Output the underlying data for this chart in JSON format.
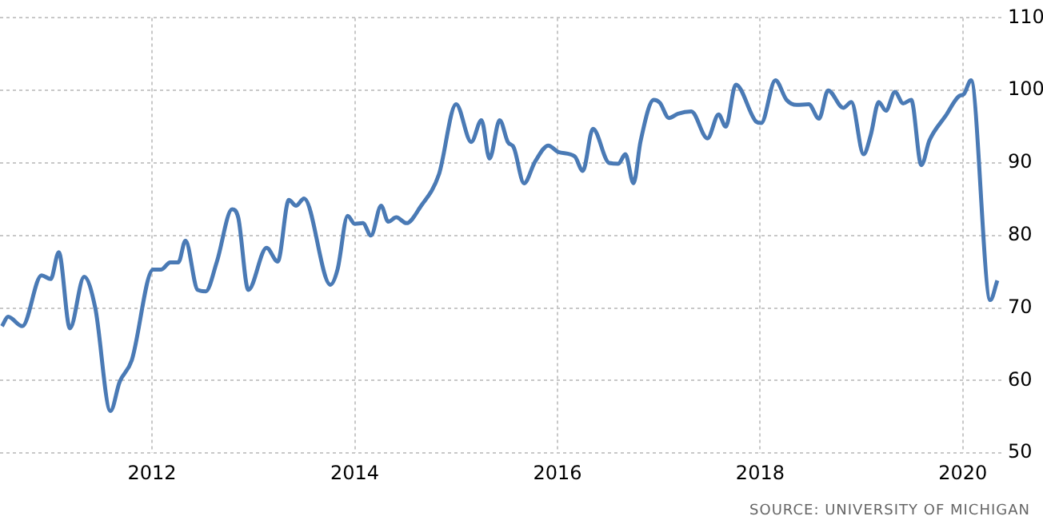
{
  "chart_data": {
    "type": "line",
    "x": [
      2010.52,
      2010.58,
      2010.72,
      2010.91,
      2011.0,
      2011.08,
      2011.19,
      2011.33,
      2011.44,
      2011.59,
      2011.68,
      2011.8,
      2012.01,
      2012.09,
      2012.18,
      2012.26,
      2012.33,
      2012.45,
      2012.53,
      2012.64,
      2012.79,
      2012.85,
      2012.95,
      2013.13,
      2013.24,
      2013.35,
      2013.42,
      2013.5,
      2013.76,
      2013.83,
      2013.93,
      2014.0,
      2014.08,
      2014.16,
      2014.26,
      2014.33,
      2014.41,
      2014.51,
      2014.65,
      2014.83,
      2015.0,
      2015.15,
      2015.25,
      2015.33,
      2015.43,
      2015.51,
      2015.57,
      2015.67,
      2015.78,
      2015.91,
      2016.01,
      2016.17,
      2016.25,
      2016.35,
      2016.51,
      2016.6,
      2016.67,
      2016.75,
      2016.82,
      2016.95,
      2017.01,
      2017.1,
      2017.19,
      2017.32,
      2017.48,
      2017.59,
      2017.66,
      2017.76,
      2017.96,
      2018.01,
      2018.15,
      2018.26,
      2018.36,
      2018.48,
      2018.58,
      2018.67,
      2018.82,
      2018.9,
      2019.02,
      2019.09,
      2019.17,
      2019.24,
      2019.33,
      2019.41,
      2019.49,
      2019.59,
      2019.67,
      2019.83,
      2019.96,
      2020.01,
      2020.08,
      2020.27,
      2020.34
    ],
    "series": [
      {
        "color": "#4a7ab5",
        "values": [
          67.5,
          68.8,
          67.5,
          74.5,
          74.0,
          77.7,
          67.2,
          74.3,
          70.0,
          55.8,
          59.8,
          62.8,
          75.3,
          75.3,
          76.3,
          76.3,
          79.3,
          72.5,
          72.3,
          76.4,
          83.6,
          82.5,
          72.5,
          78.3,
          76.4,
          84.9,
          84.1,
          85.1,
          73.2,
          75.3,
          82.7,
          81.6,
          81.7,
          80.0,
          84.1,
          81.9,
          82.5,
          81.7,
          84.0,
          88.4,
          98.1,
          92.9,
          95.9,
          90.6,
          95.9,
          92.9,
          92.1,
          87.2,
          90.2,
          92.4,
          91.5,
          90.9,
          88.9,
          94.7,
          90.0,
          89.9,
          91.2,
          87.2,
          93.0,
          98.7,
          98.3,
          96.2,
          96.8,
          97.1,
          93.4,
          96.7,
          95.0,
          100.8,
          95.7,
          95.5,
          101.4,
          98.7,
          98.0,
          98.1,
          96.1,
          100.0,
          97.6,
          98.4,
          91.2,
          93.8,
          98.4,
          97.2,
          99.8,
          98.2,
          98.7,
          89.7,
          93.1,
          96.5,
          99.2,
          99.5,
          101.4,
          71.1,
          73.8
        ]
      }
    ],
    "xlim": [
      2010.5,
      2020.38
    ],
    "xticks": [
      2012,
      2014,
      2016,
      2018,
      2020
    ],
    "ylim": [
      50,
      110
    ],
    "yticks": [
      50,
      60,
      70,
      80,
      90,
      100,
      110
    ],
    "grid": true,
    "legend": false,
    "marker": "none",
    "line_style": "solid",
    "annotations": [
      "SOURCE: UNIVERSITY OF MICHIGAN"
    ]
  }
}
